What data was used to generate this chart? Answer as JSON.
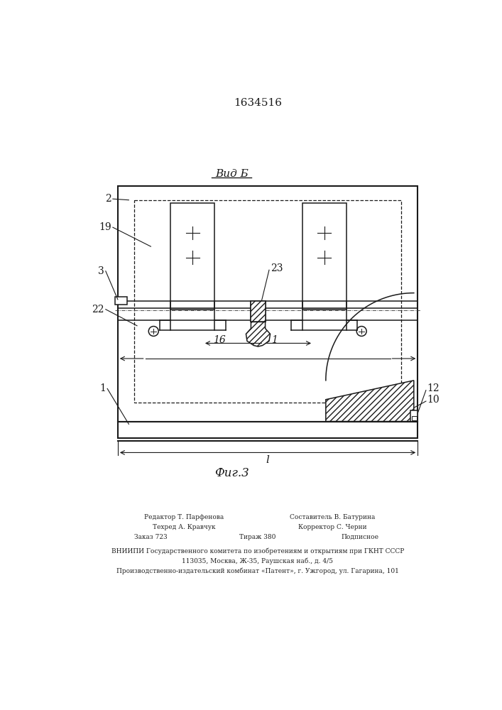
{
  "title_patent": "1634516",
  "view_label": "Вид Б",
  "fig_label": "Фиг.3",
  "dim_label": "l",
  "footer_cols": {
    "left1": "Редактор Т. Парфенова",
    "right1": "Составитель В. Батурина",
    "left2": "Техред А. Кравчук",
    "right2": "Корректор С. Черни",
    "left3": "Заказ 723",
    "mid3": "Тираж 380",
    "right3": "Подписное"
  },
  "footer_line4": "ВНИИПИ Государственного комитета по изобретениям и открытиям при ГКНТ СССР",
  "footer_line5": "113035, Москва, Ж-35, Раушская наб., д. 4/5",
  "footer_line6": "Производственно-издательский комбинат «Патент», г. Ужгород, ул. Гагарина, 101",
  "bg_color": "#ffffff",
  "line_color": "#1a1a1a"
}
